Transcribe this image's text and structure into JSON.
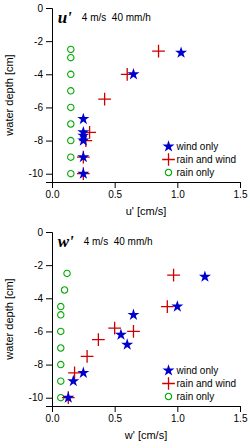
{
  "chart_data": [
    {
      "type": "scatter",
      "title": "u'",
      "subtitle": "4 m/s  40 mm/h",
      "xlabel": "u' [cm/s]",
      "ylabel": "water depth [cm]",
      "xlim": [
        0,
        1.5
      ],
      "ylim": [
        -10.5,
        0
      ],
      "xticks": [
        {
          "value": 0,
          "label": "0.0"
        },
        0.5,
        {
          "value": 1.0,
          "label": "1.0"
        },
        1.5
      ],
      "yticks": [
        0,
        -2,
        -4,
        -6,
        -8,
        -10
      ],
      "legend": "lower right",
      "series": [
        {
          "name": "wind only",
          "color": "#0000cc",
          "marker": "star",
          "x": [
            0.25,
            0.25,
            0.25,
            0.25,
            0.25,
            0.25,
            0.65,
            1.03
          ],
          "values": [
            -10,
            -9,
            -8,
            -7.5,
            -6.7,
            -7.7,
            -4.0,
            -2.7
          ]
        },
        {
          "name": "rain and wind",
          "color": "#cc0000",
          "marker": "plus",
          "x": [
            0.25,
            0.25,
            0.27,
            0.3,
            0.42,
            0.6,
            0.85
          ],
          "values": [
            -10,
            -9,
            -8,
            -7.5,
            -5.5,
            -4.0,
            -2.6
          ]
        },
        {
          "name": "rain only",
          "color": "#00aa00",
          "marker": "circle",
          "x": [
            0.15,
            0.15,
            0.15,
            0.15,
            0.15,
            0.15,
            0.15,
            0.15,
            0.15
          ],
          "values": [
            -10,
            -9,
            -8,
            -7,
            -6,
            -5,
            -4,
            -3,
            -2.5
          ]
        }
      ]
    },
    {
      "type": "scatter",
      "title": "w'",
      "subtitle": "4 m/s  40 mm/h",
      "xlabel": "w' [cm/s]",
      "ylabel": "water depth [cm]",
      "xlim": [
        0,
        1.5
      ],
      "ylim": [
        -10.5,
        0
      ],
      "xticks": [
        {
          "value": 0,
          "label": "0.0"
        },
        0.5,
        {
          "value": 1.0,
          "label": "1.0"
        },
        1.5
      ],
      "yticks": [
        0,
        -2,
        -4,
        -6,
        -8,
        -10
      ],
      "legend": "lower right",
      "series": [
        {
          "name": "wind only",
          "color": "#0000cc",
          "marker": "star",
          "x": [
            0.13,
            0.17,
            0.25,
            0.55,
            0.6,
            0.65,
            1.0,
            1.22
          ],
          "values": [
            -10,
            -9,
            -8.5,
            -6.2,
            -6.8,
            -5.0,
            -4.5,
            -2.7
          ]
        },
        {
          "name": "rain and wind",
          "color": "#cc0000",
          "marker": "plus",
          "x": [
            0.13,
            0.18,
            0.28,
            0.37,
            0.5,
            0.65,
            0.92,
            0.97
          ],
          "values": [
            -10,
            -8.5,
            -7.5,
            -6.5,
            -5.8,
            -6.0,
            -4.5,
            -2.6
          ]
        },
        {
          "name": "rain only",
          "color": "#00aa00",
          "marker": "circle",
          "x": [
            0.07,
            0.07,
            0.07,
            0.07,
            0.07,
            0.07,
            0.07,
            0.1,
            0.12
          ],
          "values": [
            -10,
            -9,
            -8,
            -7,
            -6,
            -5,
            -4.5,
            -3.5,
            -2.5
          ]
        }
      ]
    }
  ]
}
